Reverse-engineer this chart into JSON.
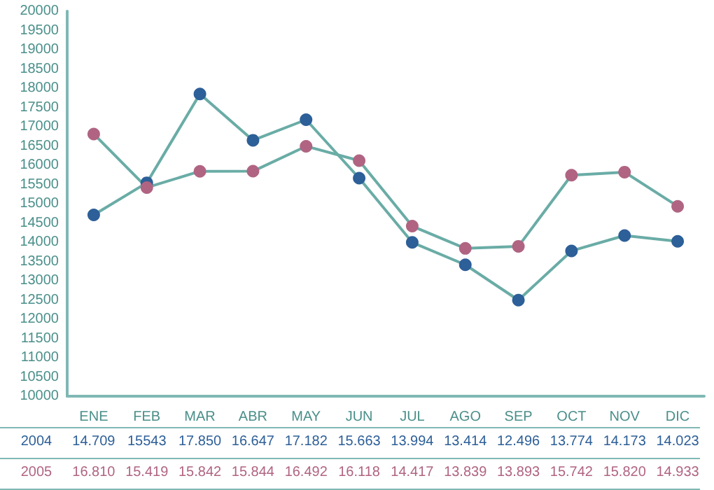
{
  "chart_data": {
    "type": "line",
    "categories": [
      "ENE",
      "FEB",
      "MAR",
      "ABR",
      "MAY",
      "JUN",
      "JUL",
      "AGO",
      "SEP",
      "OCT",
      "NOV",
      "DIC"
    ],
    "series": [
      {
        "name": "2004",
        "color": "#2d5f98",
        "values": [
          14709,
          15543,
          17850,
          16647,
          17182,
          15663,
          13994,
          13414,
          12496,
          13774,
          14173,
          14023
        ],
        "value_labels": [
          "14.709",
          "15543",
          "17.850",
          "16.647",
          "17.182",
          "15.663",
          "13.994",
          "13.414",
          "12.496",
          "13.774",
          "14.173",
          "14.023"
        ]
      },
      {
        "name": "2005",
        "color": "#b06482",
        "values": [
          16810,
          15419,
          15842,
          15844,
          16492,
          16118,
          14417,
          13839,
          13893,
          15742,
          15820,
          14933
        ],
        "value_labels": [
          "16.810",
          "15.419",
          "15.842",
          "15.844",
          "16.492",
          "16.118",
          "14.417",
          "13.839",
          "13.893",
          "15.742",
          "15.820",
          "14.933"
        ]
      }
    ],
    "ylim": [
      10000,
      20000
    ],
    "yticks": [
      10000,
      10500,
      11000,
      11500,
      12000,
      12500,
      13000,
      13500,
      14000,
      14500,
      15000,
      15500,
      16000,
      16500,
      17000,
      17500,
      18000,
      18500,
      19000,
      19500,
      20000
    ],
    "grid": false,
    "marker": "circle",
    "line_style": "solid"
  }
}
